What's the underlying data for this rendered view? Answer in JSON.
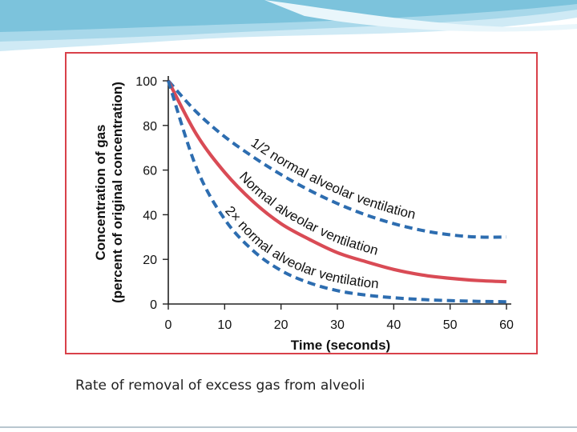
{
  "caption": "Rate of removal of excess gas from alveoli",
  "colors": {
    "frame": "#d9414a",
    "dashed_series": "#2d6db0",
    "solid_series": "#d94b55",
    "header_wave_light": "#cfeaf5",
    "header_wave_dark": "#7cc3dc",
    "footer_line": "#b8c6cf"
  },
  "chart_data": {
    "type": "line",
    "title": "",
    "xlabel": "Time (seconds)",
    "ylabel": [
      "Concentration of gas",
      "(percent of original concentration)"
    ],
    "xlim": [
      0,
      60
    ],
    "ylim": [
      0,
      100
    ],
    "x_ticks": [
      "0",
      "10",
      "20",
      "30",
      "40",
      "50",
      "60"
    ],
    "y_ticks": [
      "0",
      "20",
      "40",
      "60",
      "80",
      "100"
    ],
    "x": [
      0,
      5,
      10,
      15,
      20,
      25,
      30,
      35,
      40,
      45,
      50,
      55,
      60
    ],
    "series": [
      {
        "name": "1/2 normal alveolar ventilation",
        "style": "dashed",
        "values": [
          100,
          86,
          75,
          66,
          58,
          51,
          45,
          40,
          36,
          33,
          31,
          30,
          30
        ]
      },
      {
        "name": "Normal alveolar ventilation",
        "style": "solid",
        "values": [
          100,
          76,
          59,
          46,
          36,
          29,
          23,
          19,
          15.5,
          13,
          11.5,
          10.5,
          10
        ]
      },
      {
        "name": "2× normal alveolar ventilation",
        "style": "dashed",
        "values": [
          100,
          61,
          38,
          24,
          15,
          9.5,
          6,
          4,
          2.8,
          2,
          1.5,
          1.2,
          1
        ]
      }
    ],
    "curve_labels": [
      {
        "text": "1/2 normal alveolar ventilation",
        "x_start": 14.5,
        "x_end": 50.5
      },
      {
        "text": "Normal alveolar ventilation",
        "x_start": 12.5,
        "x_end": 43
      },
      {
        "text": "2× normal alveolar ventilation",
        "x_start": 10,
        "x_end": 44
      }
    ]
  }
}
